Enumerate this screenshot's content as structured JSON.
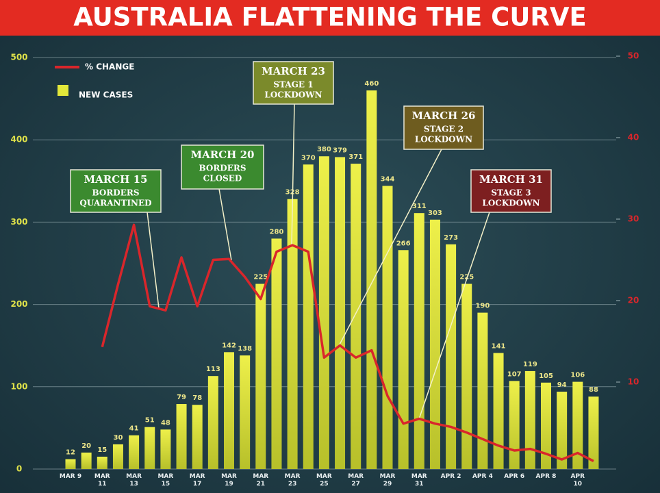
{
  "chart_data": {
    "type": "bar-line",
    "title": "AUSTRALIA FLATTENING THE CURVE",
    "categories": [
      "MAR 9",
      null,
      "MAR 11",
      null,
      "MAR 13",
      null,
      "MAR 15",
      null,
      "MAR 17",
      null,
      "MAR 19",
      null,
      "MAR 21",
      null,
      "MAR 23",
      null,
      "MAR 25",
      null,
      "MAR 27",
      null,
      "MAR 29",
      null,
      "MAR 31",
      null,
      "APR 2",
      null,
      "APR 4",
      null,
      "APR 6",
      null,
      "APR 8",
      null,
      "APR 10",
      null
    ],
    "series": [
      {
        "name": "NEW CASES",
        "type": "bar",
        "color": "#e3e83a",
        "values": [
          12,
          20,
          15,
          30,
          41,
          51,
          48,
          79,
          78,
          113,
          142,
          138,
          225,
          280,
          328,
          370,
          380,
          379,
          371,
          460,
          344,
          266,
          311,
          303,
          273,
          225,
          190,
          141,
          107,
          119,
          105,
          94,
          106,
          88
        ]
      },
      {
        "name": "% CHANGE",
        "type": "line",
        "axis": "y2",
        "color": "#d9262b",
        "values": [
          null,
          null,
          14.3,
          22,
          29.3,
          19.3,
          18.8,
          25.3,
          19.3,
          25.0,
          25.1,
          22.9,
          20.2,
          26.0,
          26.8,
          26.0,
          13.0,
          14.5,
          13.0,
          13.9,
          8.3,
          4.9,
          5.5,
          4.9,
          4.5,
          3.8,
          3.0,
          2.2,
          1.6,
          1.8,
          1.2,
          0.5,
          1.3,
          0.3
        ]
      }
    ],
    "ylim": [
      0,
      500
    ],
    "yticks": [
      0,
      100,
      200,
      300,
      400,
      500
    ],
    "y2lim": [
      0,
      50
    ],
    "y2ticks": [
      10,
      20,
      30,
      40,
      50
    ],
    "grid": true,
    "annotations": [
      {
        "title": "MARCH 15",
        "lines": [
          "BORDERS",
          "QUARANTINED"
        ],
        "color": "#3b8a2f"
      },
      {
        "title": "MARCH 20",
        "lines": [
          "BORDERS",
          "CLOSED"
        ],
        "color": "#3b8a2f"
      },
      {
        "title": "MARCH 23",
        "lines": [
          "STAGE 1",
          "LOCKDOWN"
        ],
        "color": "#7b8a2b"
      },
      {
        "title": "MARCH 26",
        "lines": [
          "STAGE 2",
          "LOCKDOWN"
        ],
        "color": "#6e5c1f"
      },
      {
        "title": "MARCH 31",
        "lines": [
          "STAGE 3",
          "LOCKDOWN"
        ],
        "color": "#7d1f20"
      }
    ]
  }
}
